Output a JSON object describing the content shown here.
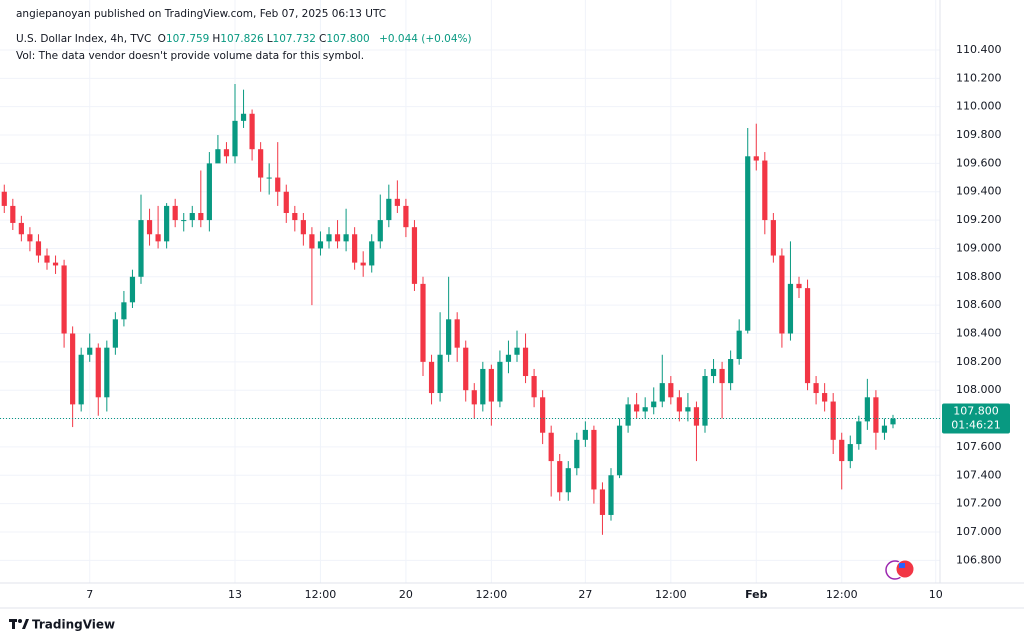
{
  "header": {
    "published": "angiepanoyan published on TradingView.com, Feb 07, 2025 06:13 UTC",
    "symbol": "U.S. Dollar Index, 4h, TVC",
    "ohlc": [
      {
        "key": "O",
        "value": "107.759"
      },
      {
        "key": "H",
        "value": "107.826"
      },
      {
        "key": "L",
        "value": "107.732"
      },
      {
        "key": "C",
        "value": "107.800"
      }
    ],
    "change": "+0.044 (+0.04%)",
    "volume_note": "Vol: The data vendor doesn't provide volume data for this symbol."
  },
  "price_label": {
    "price": "107.800",
    "countdown": "01:46:21"
  },
  "footer": {
    "brand": "TradingView"
  },
  "chart_data": {
    "type": "candlestick",
    "up_color": "#089981",
    "down_color": "#f23645",
    "grid": true,
    "last_price_line": true,
    "ylim": [
      106.64,
      110.555
    ],
    "yticks": [
      {
        "value": 106.8,
        "label": "106.800"
      },
      {
        "value": 107,
        "label": "107.000"
      },
      {
        "value": 107.2,
        "label": "107.200"
      },
      {
        "value": 107.4,
        "label": "107.400"
      },
      {
        "value": 107.6,
        "label": "107.600"
      },
      {
        "value": 107.8,
        "label": "107.800"
      },
      {
        "value": 108,
        "label": "108.000"
      },
      {
        "value": 108.2,
        "label": "108.200"
      },
      {
        "value": 108.4,
        "label": "108.400"
      },
      {
        "value": 108.6,
        "label": "108.600"
      },
      {
        "value": 108.8,
        "label": "108.800"
      },
      {
        "value": 109,
        "label": "109.000"
      },
      {
        "value": 109.2,
        "label": "109.200"
      },
      {
        "value": 109.4,
        "label": "109.400"
      },
      {
        "value": 109.6,
        "label": "109.600"
      },
      {
        "value": 109.8,
        "label": "109.800"
      },
      {
        "value": 110,
        "label": "110.000"
      },
      {
        "value": 110.2,
        "label": "110.200"
      },
      {
        "value": 110.4,
        "label": "110.400"
      }
    ],
    "categories": [
      null,
      null,
      null,
      null,
      null,
      null,
      null,
      null,
      null,
      null,
      "7",
      null,
      null,
      null,
      null,
      null,
      null,
      null,
      null,
      null,
      null,
      null,
      null,
      null,
      null,
      null,
      null,
      "13",
      null,
      null,
      null,
      null,
      null,
      null,
      null,
      null,
      null,
      "12:00",
      null,
      null,
      null,
      null,
      null,
      null,
      null,
      null,
      null,
      "20",
      null,
      null,
      null,
      null,
      null,
      null,
      null,
      null,
      null,
      "12:00",
      null,
      null,
      null,
      null,
      null,
      null,
      null,
      null,
      null,
      null,
      "27",
      null,
      null,
      null,
      null,
      null,
      null,
      null,
      null,
      null,
      "12:00",
      null,
      null,
      null,
      null,
      null,
      null,
      null,
      null,
      null,
      "Feb",
      null,
      null,
      null,
      null,
      null,
      null,
      null,
      null,
      null,
      "12:00",
      null,
      null,
      null,
      null,
      null,
      null,
      null,
      null,
      null,
      null,
      "10"
    ],
    "open": [
      109.4,
      109.3,
      109.18,
      109.1,
      109.05,
      108.95,
      108.9,
      108.88,
      108.4,
      107.9,
      108.25,
      108.3,
      107.95,
      108.3,
      108.5,
      108.62,
      108.8,
      109.2,
      109.1,
      109.05,
      109.3,
      109.2,
      109.2,
      109.25,
      109.2,
      109.6,
      109.7,
      109.65,
      109.9,
      109.95,
      109.7,
      109.5,
      109.5,
      109.4,
      109.25,
      109.2,
      109.1,
      109.0,
      109.05,
      109.1,
      109.05,
      109.1,
      108.9,
      108.88,
      109.05,
      109.2,
      109.35,
      109.3,
      109.15,
      108.75,
      108.2,
      107.98,
      108.25,
      108.5,
      108.3,
      108.0,
      107.9,
      108.15,
      107.92,
      108.2,
      108.25,
      108.3,
      108.1,
      107.95,
      107.7,
      107.5,
      107.28,
      107.45,
      107.65,
      107.72,
      107.3,
      107.12,
      107.4,
      107.75,
      107.9,
      107.85,
      107.88,
      107.92,
      108.05,
      107.95,
      107.85,
      107.88,
      107.75,
      108.1,
      108.15,
      108.05,
      108.22,
      108.42,
      109.65,
      109.62,
      109.2,
      108.95,
      108.4,
      108.75,
      108.72,
      108.05,
      107.98,
      107.92,
      107.65,
      107.5,
      107.62,
      107.78,
      107.95,
      107.7,
      107.759,
      null,
      null,
      null,
      null,
      null
    ],
    "high": [
      109.45,
      109.35,
      109.23,
      109.15,
      109.1,
      109.0,
      108.95,
      108.92,
      108.45,
      108.3,
      108.4,
      108.33,
      108.35,
      108.55,
      108.7,
      108.85,
      109.38,
      109.28,
      109.3,
      109.32,
      109.35,
      109.25,
      109.3,
      109.55,
      109.68,
      109.8,
      109.75,
      110.16,
      110.12,
      109.98,
      109.75,
      109.6,
      109.75,
      109.45,
      109.3,
      109.25,
      109.15,
      109.12,
      109.15,
      109.2,
      109.28,
      109.15,
      108.98,
      109.1,
      109.38,
      109.45,
      109.48,
      109.35,
      109.2,
      108.8,
      108.25,
      108.55,
      108.8,
      108.55,
      108.35,
      108.05,
      108.2,
      108.18,
      108.28,
      108.35,
      108.42,
      108.4,
      108.15,
      108.0,
      107.75,
      107.55,
      107.5,
      107.7,
      107.78,
      107.75,
      107.35,
      107.45,
      107.8,
      107.95,
      107.98,
      107.95,
      108.02,
      108.25,
      108.1,
      108.0,
      107.98,
      107.92,
      108.15,
      108.22,
      108.2,
      108.28,
      108.5,
      109.85,
      109.88,
      109.68,
      109.25,
      109.0,
      109.05,
      108.8,
      108.78,
      108.1,
      108.05,
      107.98,
      107.7,
      107.68,
      107.82,
      108.08,
      108.0,
      107.8,
      107.826,
      null,
      null,
      null,
      null,
      null
    ],
    "low": [
      109.25,
      109.13,
      109.05,
      108.98,
      108.9,
      108.85,
      108.82,
      108.3,
      107.74,
      107.85,
      108.2,
      107.82,
      107.85,
      108.25,
      108.45,
      108.58,
      108.75,
      109.02,
      109.0,
      109.0,
      109.15,
      109.12,
      109.15,
      109.15,
      109.12,
      109.62,
      109.6,
      109.6,
      109.85,
      109.62,
      109.4,
      109.38,
      109.3,
      109.18,
      109.12,
      109.02,
      108.6,
      108.95,
      109.0,
      109.0,
      108.98,
      108.85,
      108.8,
      108.83,
      109.0,
      109.15,
      109.25,
      109.08,
      108.7,
      108.1,
      107.9,
      107.92,
      108.2,
      108.2,
      107.92,
      107.8,
      107.85,
      107.75,
      107.88,
      108.12,
      108.2,
      108.05,
      107.88,
      107.62,
      107.25,
      107.22,
      107.22,
      107.4,
      107.6,
      107.2,
      106.98,
      107.08,
      107.38,
      107.7,
      107.8,
      107.8,
      107.83,
      107.88,
      107.9,
      107.78,
      107.78,
      107.5,
      107.7,
      108.05,
      107.8,
      108.0,
      108.18,
      108.4,
      109.55,
      109.1,
      108.9,
      108.3,
      108.35,
      108.65,
      108.0,
      107.9,
      107.85,
      107.55,
      107.3,
      107.45,
      107.58,
      107.72,
      107.58,
      107.65,
      107.732,
      null,
      null,
      null,
      null,
      null
    ],
    "close": [
      109.3,
      109.18,
      109.1,
      109.05,
      108.95,
      108.9,
      108.88,
      108.4,
      107.9,
      108.25,
      108.3,
      107.95,
      108.3,
      108.5,
      108.62,
      108.8,
      109.2,
      109.1,
      109.05,
      109.3,
      109.2,
      109.2,
      109.25,
      109.2,
      109.6,
      109.7,
      109.65,
      109.9,
      109.95,
      109.7,
      109.5,
      109.5,
      109.4,
      109.25,
      109.2,
      109.1,
      109.0,
      109.05,
      109.1,
      109.05,
      109.1,
      108.9,
      108.88,
      109.05,
      109.2,
      109.35,
      109.3,
      109.15,
      108.75,
      108.2,
      107.98,
      108.25,
      108.5,
      108.3,
      108.0,
      107.9,
      108.15,
      107.92,
      108.2,
      108.25,
      108.3,
      108.1,
      107.95,
      107.7,
      107.5,
      107.28,
      107.45,
      107.65,
      107.72,
      107.3,
      107.12,
      107.4,
      107.75,
      107.9,
      107.85,
      107.88,
      107.92,
      108.05,
      107.95,
      107.85,
      107.88,
      107.75,
      108.1,
      108.15,
      108.05,
      108.22,
      108.42,
      109.65,
      109.62,
      109.2,
      108.95,
      108.4,
      108.75,
      108.72,
      108.05,
      107.98,
      107.92,
      107.65,
      107.5,
      107.62,
      107.78,
      107.95,
      107.7,
      107.75,
      107.8,
      null,
      null,
      null,
      null,
      null
    ]
  }
}
